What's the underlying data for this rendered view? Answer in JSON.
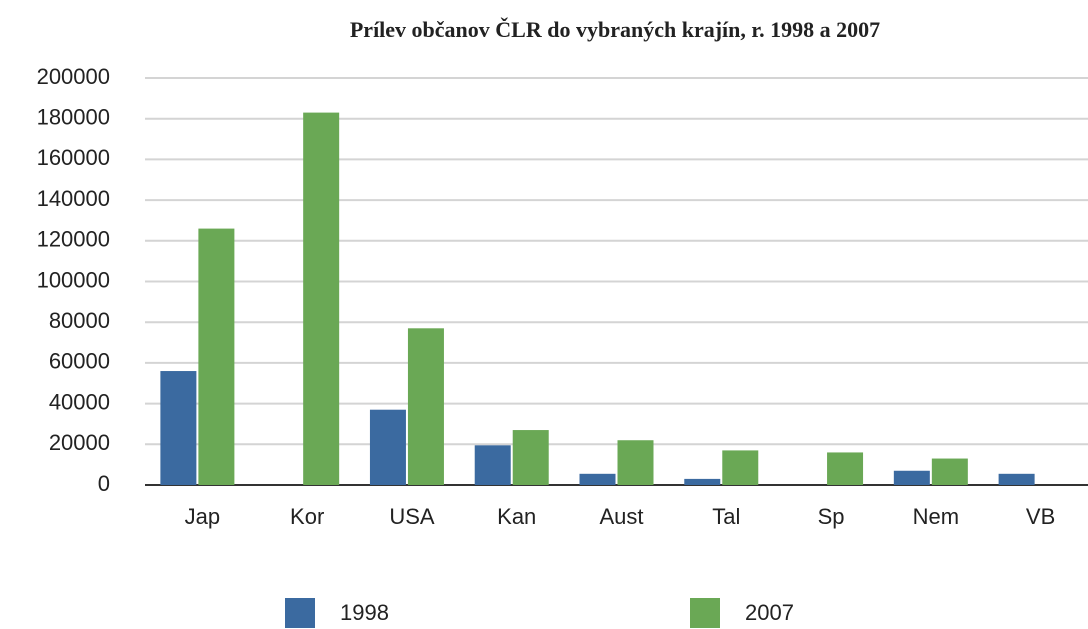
{
  "chart_data": {
    "type": "bar",
    "title": "Prílev občanov ČLR do vybraných krajín, r. 1998 a 2007",
    "categories": [
      "Jap",
      "Kor",
      "USA",
      "Kan",
      "Aust",
      "Tal",
      "Sp",
      "Nem",
      "VB"
    ],
    "series": [
      {
        "name": "1998",
        "color": "#3b6aa0",
        "values": [
          56000,
          null,
          37000,
          19500,
          5500,
          3000,
          null,
          7000,
          5500
        ]
      },
      {
        "name": "2007",
        "color": "#6aa855",
        "values": [
          126000,
          183000,
          77000,
          27000,
          22000,
          17000,
          16000,
          13000,
          null
        ]
      }
    ],
    "ylim": [
      0,
      200000
    ],
    "yticks": [
      0,
      20000,
      40000,
      60000,
      80000,
      100000,
      120000,
      140000,
      160000,
      180000,
      200000
    ],
    "grid": true,
    "legend": "bottom"
  }
}
